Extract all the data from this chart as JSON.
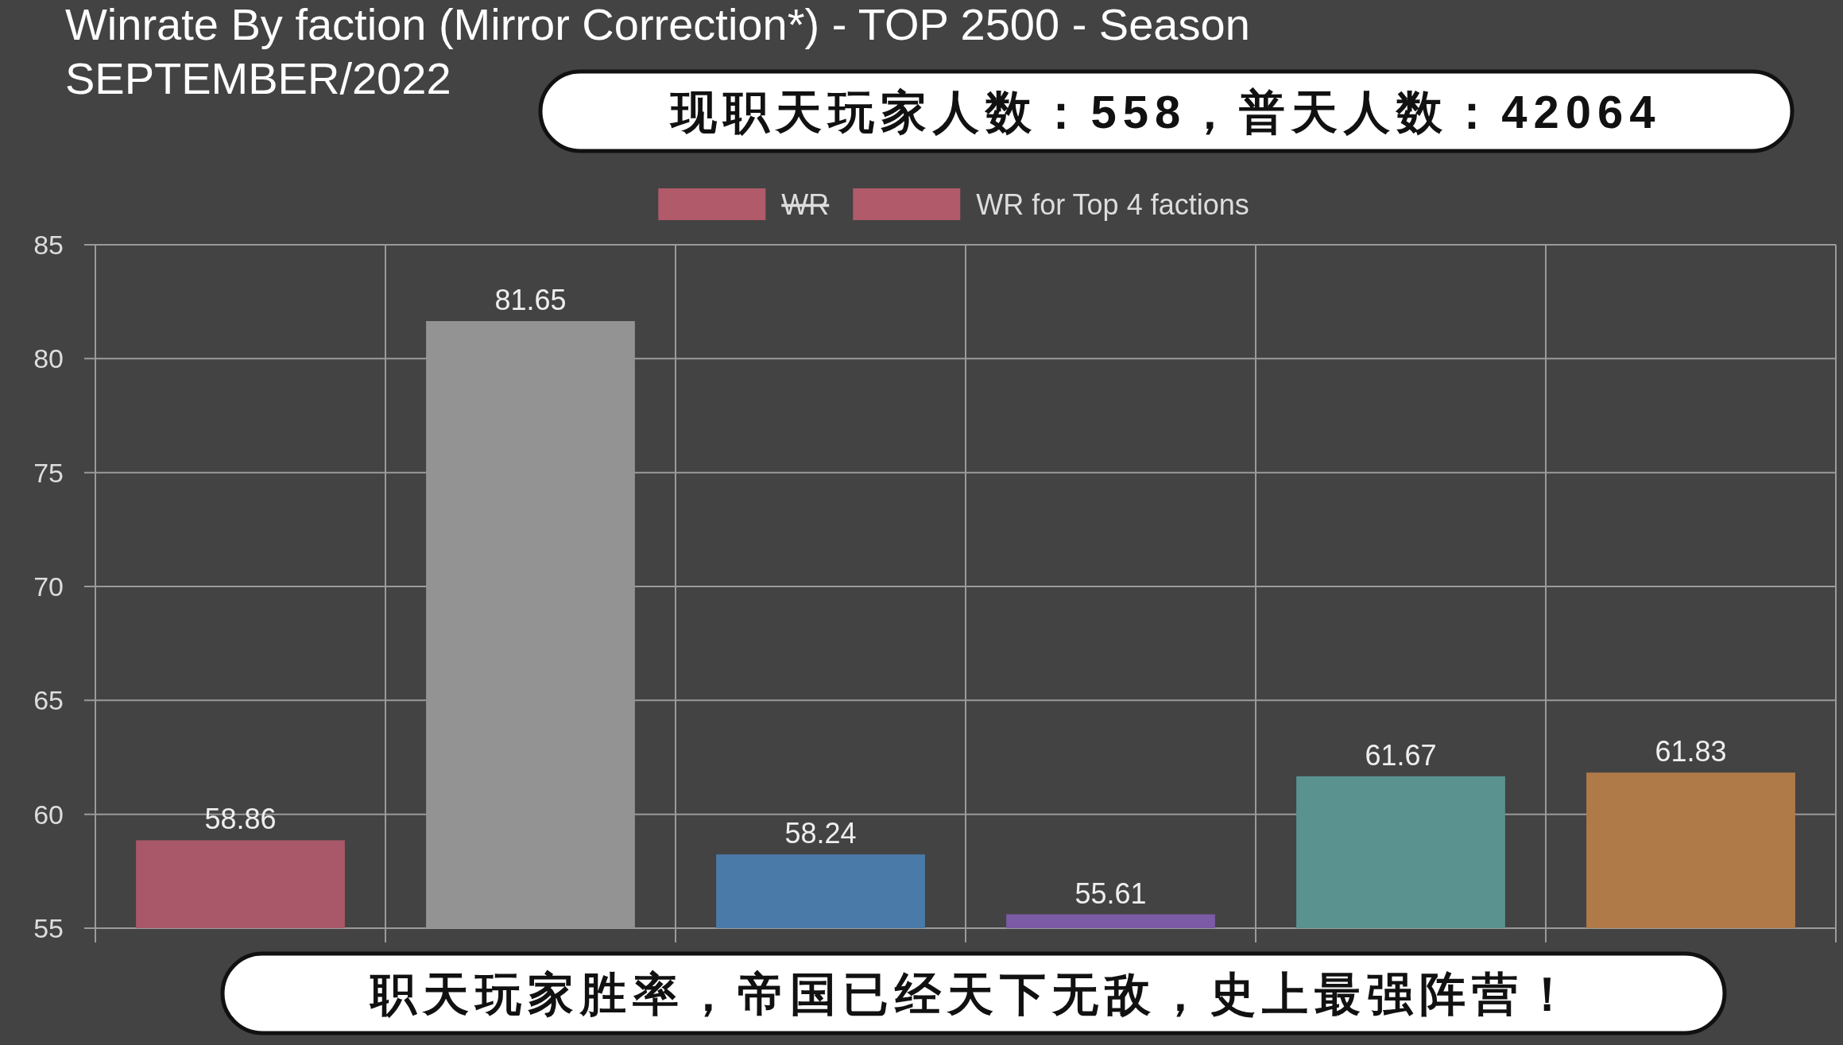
{
  "chart_data": {
    "type": "bar",
    "title": "Winrate By faction (Mirror Correction*) - TOP 2500 - Season SEPTEMBER/2022",
    "annotations": [
      "现职天玩家人数：558，普天人数：42064",
      "职天玩家胜率，帝国已经天下无敌，史上最强阵营！"
    ],
    "categories": [
      null,
      null,
      null,
      null,
      null,
      null
    ],
    "series": [
      {
        "name": "WR",
        "color": "#b05a6a",
        "values": [
          null,
          null,
          null,
          null,
          null,
          null
        ]
      },
      {
        "name": "WR for Top 4 factions",
        "color": "#b05a6a",
        "values": [
          58.86,
          81.65,
          58.24,
          55.61,
          61.67,
          61.83
        ],
        "colors": [
          "#a85868",
          "#939393",
          "#4a7aa8",
          "#7b5aa6",
          "#5a9290",
          "#b07a48"
        ]
      }
    ],
    "ylim": [
      55,
      85
    ],
    "yticks": [
      55,
      60,
      65,
      70,
      75,
      80,
      85
    ],
    "grid": true,
    "legend": "top",
    "data_labels": true
  }
}
